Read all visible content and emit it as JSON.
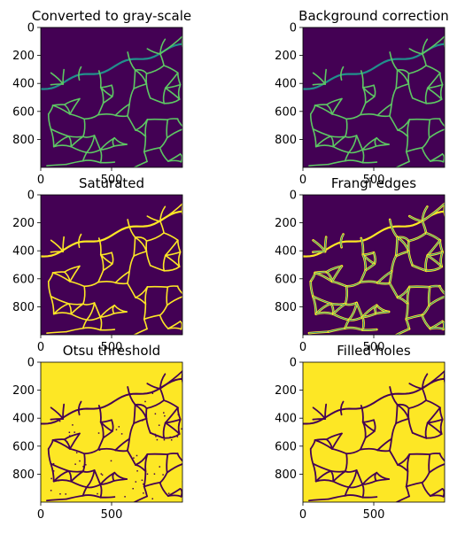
{
  "figure": {
    "layout": "3x2 grid of image panels",
    "colormap": "viridis",
    "colors": {
      "dark": "#440154",
      "mid_dark": "#3b528b",
      "teal": "#21908c",
      "green": "#5dc863",
      "yellow": "#fde725",
      "axis": "#000000"
    }
  },
  "chart_data": [
    {
      "type": "heatmap",
      "title": "Converted to gray-scale",
      "xticks": [
        "0",
        "500"
      ],
      "yticks": [
        "0",
        "200",
        "400",
        "600",
        "800"
      ],
      "xlim": [
        0,
        1000
      ],
      "ylim": [
        1000,
        0
      ],
      "style": "network-dim"
    },
    {
      "type": "heatmap",
      "title": "Background correction",
      "xticks": [
        "0",
        "500"
      ],
      "yticks": [
        "0",
        "200",
        "400",
        "600",
        "800"
      ],
      "xlim": [
        0,
        1000
      ],
      "ylim": [
        1000,
        0
      ],
      "style": "network-dim"
    },
    {
      "type": "heatmap",
      "title": "Saturated",
      "xticks": [
        "0",
        "500"
      ],
      "yticks": [
        "0",
        "200",
        "400",
        "600",
        "800"
      ],
      "xlim": [
        0,
        1000
      ],
      "ylim": [
        1000,
        0
      ],
      "style": "network-bright"
    },
    {
      "type": "heatmap",
      "title": "Frangi edges",
      "xticks": [
        "0",
        "500"
      ],
      "yticks": [
        "0",
        "200",
        "400",
        "600",
        "800"
      ],
      "xlim": [
        0,
        1000
      ],
      "ylim": [
        1000,
        0
      ],
      "style": "network-edges"
    },
    {
      "type": "heatmap",
      "title": "Otsu threshold",
      "xticks": [
        "0",
        "500"
      ],
      "yticks": [
        "0",
        "200",
        "400",
        "600",
        "800"
      ],
      "xlim": [
        0,
        1000
      ],
      "ylim": [
        1000,
        0
      ],
      "style": "binary"
    },
    {
      "type": "heatmap",
      "title": "Filled holes",
      "xticks": [
        "0",
        "500"
      ],
      "yticks": [
        "0",
        "200",
        "400",
        "600",
        "800"
      ],
      "xlim": [
        0,
        1000
      ],
      "ylim": [
        1000,
        0
      ],
      "style": "binary-filled"
    }
  ]
}
